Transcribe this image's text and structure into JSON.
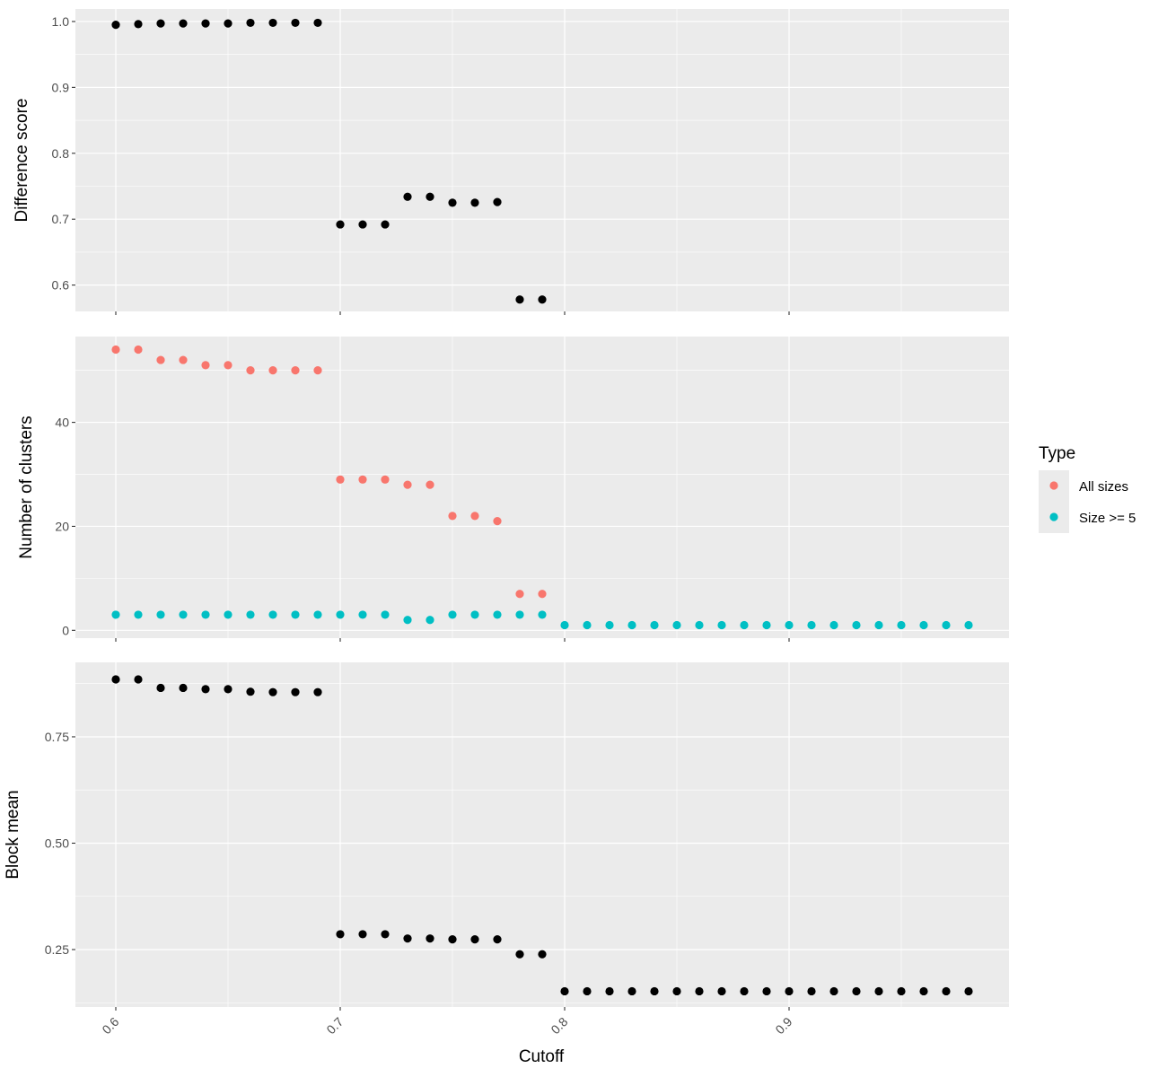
{
  "chart_data": {
    "type": "scatter",
    "xlabel": "Cutoff",
    "xlim": [
      0.582,
      0.998
    ],
    "x_ticks": [
      0.6,
      0.7,
      0.8,
      0.9
    ],
    "x_tick_labels": [
      "0.6",
      "0.7",
      "0.8",
      "0.9"
    ],
    "grid": true,
    "legend": {
      "title": "Type",
      "position": "right",
      "entries": [
        {
          "label": "All sizes",
          "color": "#F8766D"
        },
        {
          "label": "Size >= 5",
          "color": "#00BFC4"
        }
      ]
    },
    "panels": [
      {
        "ylabel": "Difference score",
        "ylim": [
          0.56,
          1.019
        ],
        "y_ticks": [
          0.6,
          0.7,
          0.8,
          0.9,
          1.0
        ],
        "y_tick_labels": [
          "0.6",
          "0.7",
          "0.8",
          "0.9",
          "1.0"
        ],
        "series": [
          {
            "color": "#000000",
            "x": [
              0.6,
              0.61,
              0.62,
              0.63,
              0.64,
              0.65,
              0.66,
              0.67,
              0.68,
              0.69,
              0.7,
              0.71,
              0.72,
              0.73,
              0.74,
              0.75,
              0.76,
              0.77,
              0.78,
              0.79
            ],
            "y": [
              0.995,
              0.996,
              0.997,
              0.997,
              0.997,
              0.997,
              0.998,
              0.998,
              0.998,
              0.998,
              0.692,
              0.692,
              0.692,
              0.734,
              0.734,
              0.725,
              0.725,
              0.726,
              0.578,
              0.578
            ]
          }
        ]
      },
      {
        "ylabel": "Number of clusters",
        "ylim": [
          -1.5,
          56.5
        ],
        "y_ticks": [
          0,
          20,
          40
        ],
        "y_tick_labels": [
          "0",
          "20",
          "40"
        ],
        "series": [
          {
            "name": "All sizes",
            "color": "#F8766D",
            "x": [
              0.6,
              0.61,
              0.62,
              0.63,
              0.64,
              0.65,
              0.66,
              0.67,
              0.68,
              0.69,
              0.7,
              0.71,
              0.72,
              0.73,
              0.74,
              0.75,
              0.76,
              0.77,
              0.78,
              0.79
            ],
            "y": [
              54,
              54,
              52,
              52,
              51,
              51,
              50,
              50,
              50,
              50,
              29,
              29,
              29,
              28,
              28,
              22,
              22,
              21,
              7,
              7
            ]
          },
          {
            "name": "Size >= 5",
            "color": "#00BFC4",
            "x": [
              0.6,
              0.61,
              0.62,
              0.63,
              0.64,
              0.65,
              0.66,
              0.67,
              0.68,
              0.69,
              0.7,
              0.71,
              0.72,
              0.73,
              0.74,
              0.75,
              0.76,
              0.77,
              0.78,
              0.79,
              0.8,
              0.81,
              0.82,
              0.83,
              0.84,
              0.85,
              0.86,
              0.87,
              0.88,
              0.89,
              0.9,
              0.91,
              0.92,
              0.93,
              0.94,
              0.95,
              0.96,
              0.97,
              0.98
            ],
            "y": [
              3,
              3,
              3,
              3,
              3,
              3,
              3,
              3,
              3,
              3,
              3,
              3,
              3,
              2,
              2,
              3,
              3,
              3,
              3,
              3,
              1,
              1,
              1,
              1,
              1,
              1,
              1,
              1,
              1,
              1,
              1,
              1,
              1,
              1,
              1,
              1,
              1,
              1,
              1
            ]
          }
        ]
      },
      {
        "ylabel": "Block mean",
        "ylim": [
          0.115,
          0.925
        ],
        "y_ticks": [
          0.25,
          0.5,
          0.75
        ],
        "y_tick_labels": [
          "0.25",
          "0.50",
          "0.75"
        ],
        "series": [
          {
            "color": "#000000",
            "x": [
              0.6,
              0.61,
              0.62,
              0.63,
              0.64,
              0.65,
              0.66,
              0.67,
              0.68,
              0.69,
              0.7,
              0.71,
              0.72,
              0.73,
              0.74,
              0.75,
              0.76,
              0.77,
              0.78,
              0.79,
              0.8,
              0.81,
              0.82,
              0.83,
              0.84,
              0.85,
              0.86,
              0.87,
              0.88,
              0.89,
              0.9,
              0.91,
              0.92,
              0.93,
              0.94,
              0.95,
              0.96,
              0.97,
              0.98
            ],
            "y": [
              0.885,
              0.885,
              0.865,
              0.865,
              0.862,
              0.862,
              0.856,
              0.855,
              0.855,
              0.855,
              0.286,
              0.286,
              0.286,
              0.276,
              0.276,
              0.274,
              0.274,
              0.274,
              0.239,
              0.239,
              0.152,
              0.152,
              0.152,
              0.152,
              0.152,
              0.152,
              0.152,
              0.152,
              0.152,
              0.152,
              0.152,
              0.152,
              0.152,
              0.152,
              0.152,
              0.152,
              0.152,
              0.152,
              0.152
            ]
          }
        ]
      }
    ]
  }
}
